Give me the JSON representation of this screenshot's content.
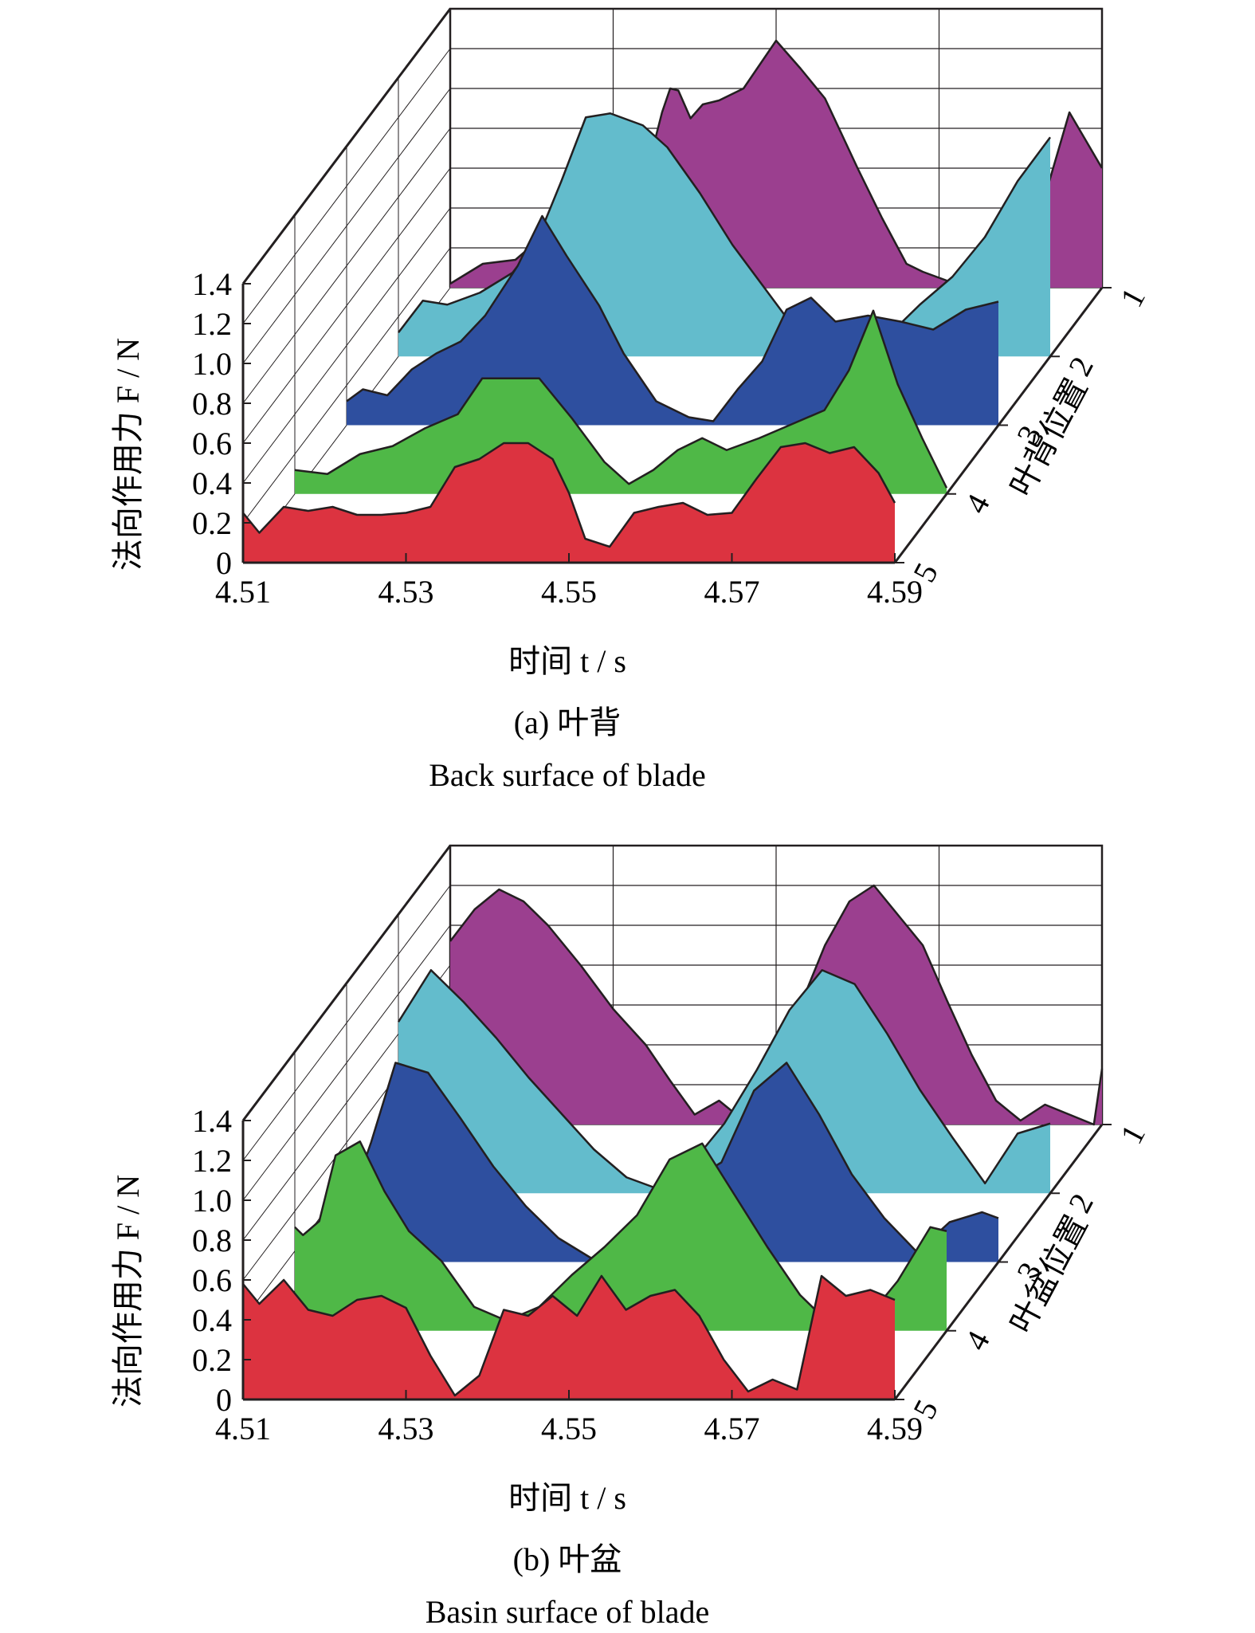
{
  "colors": {
    "row1": "#9b3f8f",
    "row2": "#63bccc",
    "row3": "#2e4f9f",
    "row4": "#4fb847",
    "row5": "#dc3340",
    "top_band_tint": "#b5562a",
    "frame": "#231f20"
  },
  "chart_data": [
    {
      "type": "area",
      "caption_cn": "(a) 叶背",
      "caption_en": "Back surface of blade",
      "ylabel": "法向作用力 F / N",
      "xlabel": "时间 t / s",
      "zlabel": "叶背位置",
      "xlim": [
        4.51,
        4.59
      ],
      "ylim": [
        0,
        1.4
      ],
      "xticks": [
        "4.51",
        "4.53",
        "4.55",
        "4.57",
        "4.59"
      ],
      "yticks": [
        "0",
        "0.2",
        "0.4",
        "0.6",
        "0.8",
        "1.0",
        "1.2",
        "1.4"
      ],
      "zticks": [
        "1",
        "2",
        "3",
        "4",
        "5"
      ],
      "grid": true,
      "series": [
        {
          "name": "1",
          "x": [
            4.51,
            4.514,
            4.518,
            4.522,
            4.525,
            4.528,
            4.53,
            4.532,
            4.534,
            4.536,
            4.537,
            4.538,
            4.5395,
            4.541,
            4.543,
            4.546,
            4.55,
            4.553,
            4.556,
            4.56,
            4.563,
            4.566,
            4.568,
            4.57,
            4.572,
            4.574,
            4.576,
            4.578,
            4.5795,
            4.581,
            4.583,
            4.586,
            4.59
          ],
          "values": [
            0.02,
            0.12,
            0.14,
            0.28,
            0.22,
            0.6,
            0.45,
            0.6,
            0.56,
            0.88,
            1.0,
            0.99,
            0.85,
            0.92,
            0.94,
            1.0,
            1.24,
            1.1,
            0.95,
            0.6,
            0.35,
            0.12,
            0.08,
            0.05,
            0.02,
            0.14,
            0.28,
            0.36,
            0.28,
            0.6,
            0.46,
            0.88,
            0.6
          ]
        },
        {
          "name": "2",
          "x": [
            4.51,
            4.513,
            4.516,
            4.52,
            4.524,
            4.527,
            4.53,
            4.533,
            4.536,
            4.54,
            4.543,
            4.547,
            4.551,
            4.555,
            4.559,
            4.563,
            4.566,
            4.57,
            4.574,
            4.578,
            4.582,
            4.586,
            4.59
          ],
          "values": [
            0.12,
            0.28,
            0.26,
            0.32,
            0.42,
            0.58,
            0.88,
            1.2,
            1.22,
            1.16,
            1.05,
            0.82,
            0.56,
            0.34,
            0.12,
            0.05,
            0.02,
            0.1,
            0.26,
            0.4,
            0.6,
            0.88,
            1.1
          ]
        },
        {
          "name": "3",
          "x": [
            4.51,
            4.512,
            4.515,
            4.518,
            4.521,
            4.524,
            4.527,
            4.531,
            4.534,
            4.537,
            4.541,
            4.544,
            4.548,
            4.552,
            4.555,
            4.558,
            4.561,
            4.564,
            4.567,
            4.57,
            4.574,
            4.578,
            4.582,
            4.586,
            4.59
          ],
          "values": [
            0.12,
            0.18,
            0.15,
            0.28,
            0.36,
            0.42,
            0.55,
            0.8,
            1.05,
            0.85,
            0.6,
            0.36,
            0.12,
            0.04,
            0.02,
            0.18,
            0.32,
            0.58,
            0.64,
            0.52,
            0.55,
            0.52,
            0.48,
            0.58,
            0.62
          ]
        },
        {
          "name": "4",
          "x": [
            4.51,
            4.514,
            4.518,
            4.522,
            4.526,
            4.53,
            4.533,
            4.536,
            4.54,
            4.544,
            4.548,
            4.551,
            4.554,
            4.557,
            4.56,
            4.563,
            4.567,
            4.571,
            4.575,
            4.578,
            4.581,
            4.584,
            4.587,
            4.59
          ],
          "values": [
            0.12,
            0.1,
            0.2,
            0.24,
            0.33,
            0.4,
            0.58,
            0.58,
            0.58,
            0.38,
            0.16,
            0.05,
            0.12,
            0.22,
            0.28,
            0.22,
            0.28,
            0.35,
            0.42,
            0.62,
            0.92,
            0.55,
            0.28,
            0.03
          ]
        },
        {
          "name": "5",
          "x": [
            4.51,
            4.512,
            4.515,
            4.518,
            4.521,
            4.524,
            4.527,
            4.53,
            4.533,
            4.536,
            4.539,
            4.542,
            4.545,
            4.548,
            4.55,
            4.552,
            4.555,
            4.558,
            4.561,
            4.564,
            4.567,
            4.57,
            4.573,
            4.576,
            4.579,
            4.582,
            4.585,
            4.588,
            4.59
          ],
          "values": [
            0.25,
            0.15,
            0.28,
            0.26,
            0.28,
            0.24,
            0.24,
            0.25,
            0.28,
            0.48,
            0.52,
            0.6,
            0.6,
            0.52,
            0.35,
            0.12,
            0.08,
            0.25,
            0.28,
            0.3,
            0.24,
            0.25,
            0.42,
            0.58,
            0.6,
            0.55,
            0.58,
            0.45,
            0.3
          ]
        }
      ]
    },
    {
      "type": "area",
      "caption_cn": "(b) 叶盆",
      "caption_en": "Basin surface of blade",
      "ylabel": "法向作用力 F / N",
      "xlabel": "时间 t / s",
      "zlabel": "叶盆位置",
      "xlim": [
        4.51,
        4.59
      ],
      "ylim": [
        0,
        1.4
      ],
      "xticks": [
        "4.51",
        "4.53",
        "4.55",
        "4.57",
        "4.59"
      ],
      "yticks": [
        "0",
        "0.2",
        "0.4",
        "0.6",
        "0.8",
        "1.0",
        "1.2",
        "1.4"
      ],
      "zticks": [
        "1",
        "2",
        "3",
        "4",
        "5"
      ],
      "grid": true,
      "series": [
        {
          "name": "1",
          "x": [
            4.51,
            4.513,
            4.516,
            4.519,
            4.522,
            4.526,
            4.53,
            4.534,
            4.537,
            4.54,
            4.543,
            4.546,
            4.549,
            4.553,
            4.556,
            4.559,
            4.562,
            4.565,
            4.568,
            4.571,
            4.574,
            4.577,
            4.58,
            4.583,
            4.586,
            4.589,
            4.59
          ],
          "values": [
            0.92,
            1.08,
            1.18,
            1.12,
            1.0,
            0.8,
            0.58,
            0.4,
            0.22,
            0.05,
            0.12,
            0.02,
            0.3,
            0.6,
            0.9,
            1.12,
            1.2,
            1.05,
            0.9,
            0.62,
            0.35,
            0.12,
            0.02,
            0.1,
            0.05,
            0.0,
            0.28
          ]
        },
        {
          "name": "2",
          "x": [
            4.51,
            4.514,
            4.518,
            4.522,
            4.526,
            4.53,
            4.534,
            4.538,
            4.542,
            4.546,
            4.55,
            4.554,
            4.558,
            4.562,
            4.566,
            4.57,
            4.574,
            4.578,
            4.582,
            4.586,
            4.59
          ],
          "values": [
            0.86,
            1.12,
            0.96,
            0.78,
            0.58,
            0.4,
            0.22,
            0.08,
            0.02,
            0.15,
            0.35,
            0.62,
            0.92,
            1.12,
            1.05,
            0.8,
            0.52,
            0.28,
            0.05,
            0.3,
            0.35
          ]
        },
        {
          "name": "3",
          "x": [
            4.51,
            4.513,
            4.516,
            4.52,
            4.524,
            4.528,
            4.532,
            4.536,
            4.54,
            4.544,
            4.548,
            4.552,
            4.556,
            4.56,
            4.564,
            4.568,
            4.572,
            4.576,
            4.58,
            4.584,
            4.588,
            4.59
          ],
          "values": [
            0.25,
            0.6,
            1.0,
            0.95,
            0.72,
            0.48,
            0.28,
            0.12,
            0.02,
            0.08,
            0.32,
            0.4,
            0.5,
            0.86,
            1.0,
            0.74,
            0.44,
            0.22,
            0.05,
            0.2,
            0.25,
            0.22
          ]
        },
        {
          "name": "4",
          "x": [
            4.51,
            4.511,
            4.513,
            4.515,
            4.518,
            4.521,
            4.524,
            4.528,
            4.532,
            4.536,
            4.54,
            4.544,
            4.548,
            4.552,
            4.556,
            4.56,
            4.564,
            4.568,
            4.572,
            4.576,
            4.58,
            4.584,
            4.588,
            4.59
          ],
          "values": [
            0.52,
            0.48,
            0.55,
            0.88,
            0.95,
            0.7,
            0.5,
            0.35,
            0.12,
            0.05,
            0.12,
            0.28,
            0.42,
            0.58,
            0.86,
            0.94,
            0.68,
            0.42,
            0.18,
            0.02,
            0.05,
            0.25,
            0.52,
            0.5
          ]
        },
        {
          "name": "5",
          "x": [
            4.51,
            4.512,
            4.515,
            4.518,
            4.521,
            4.524,
            4.527,
            4.53,
            4.533,
            4.536,
            4.539,
            4.542,
            4.545,
            4.548,
            4.551,
            4.554,
            4.557,
            4.56,
            4.563,
            4.566,
            4.569,
            4.572,
            4.575,
            4.578,
            4.581,
            4.584,
            4.587,
            4.59
          ],
          "values": [
            0.58,
            0.48,
            0.6,
            0.45,
            0.42,
            0.5,
            0.52,
            0.46,
            0.22,
            0.02,
            0.12,
            0.45,
            0.42,
            0.52,
            0.42,
            0.62,
            0.45,
            0.52,
            0.55,
            0.42,
            0.2,
            0.04,
            0.1,
            0.05,
            0.62,
            0.52,
            0.55,
            0.5
          ]
        }
      ]
    }
  ]
}
